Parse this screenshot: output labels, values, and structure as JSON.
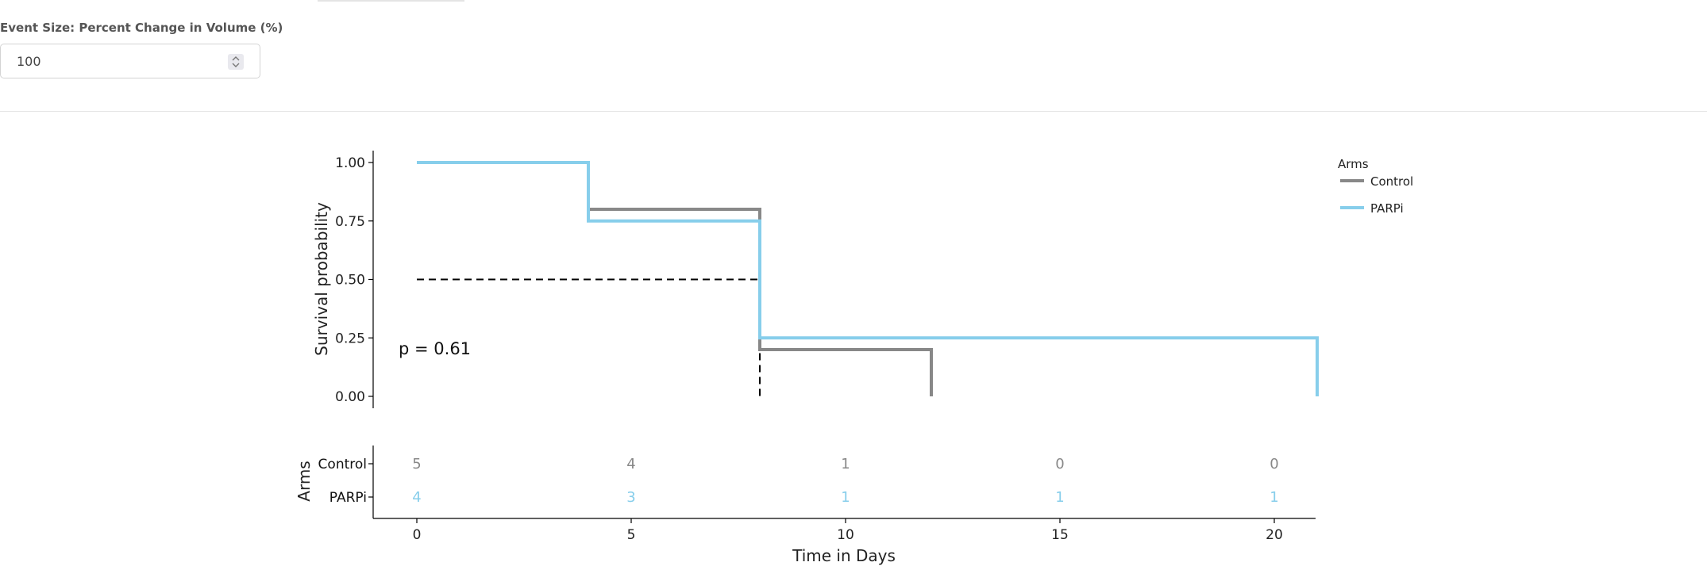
{
  "controls": {
    "event_size_label": "Event Size: Percent Change in Volume (%)",
    "event_size_value": "100"
  },
  "chart_data": {
    "type": "line",
    "subtype": "kaplan-meier-step",
    "xlabel": "Time in Days",
    "ylabel": "Survival probability",
    "xlim": [
      -1,
      21
    ],
    "ylim": [
      0,
      1
    ],
    "x_ticks": [
      0,
      5,
      10,
      15,
      20
    ],
    "y_ticks": [
      0.0,
      0.25,
      0.5,
      0.75,
      1.0
    ],
    "y_tick_labels": [
      "0.00",
      "0.25",
      "0.50",
      "0.75",
      "1.00"
    ],
    "legend_title": "Arms",
    "legend_position": "top-right",
    "annotation": "p = 0.61",
    "series": [
      {
        "name": "Control",
        "color": "#888888",
        "steps": [
          [
            0,
            1.0
          ],
          [
            4,
            1.0
          ],
          [
            4,
            0.8
          ],
          [
            8,
            0.8
          ],
          [
            8,
            0.2
          ],
          [
            12,
            0.2
          ],
          [
            12,
            0.0
          ]
        ]
      },
      {
        "name": "PARPi",
        "color": "#87CEEB",
        "steps": [
          [
            0,
            1.0
          ],
          [
            4,
            1.0
          ],
          [
            4,
            0.75
          ],
          [
            8,
            0.75
          ],
          [
            8,
            0.25
          ],
          [
            21,
            0.25
          ],
          [
            21,
            0.0
          ]
        ]
      }
    ],
    "median_line": {
      "y": 0.5,
      "x": 8
    },
    "risk_table": {
      "ylabel": "Arms",
      "times": [
        0,
        5,
        10,
        15,
        20
      ],
      "rows": [
        {
          "name": "Control",
          "color": "#888888",
          "counts": [
            5,
            4,
            1,
            0,
            0
          ]
        },
        {
          "name": "PARPi",
          "color": "#87CEEB",
          "counts": [
            4,
            3,
            1,
            1,
            1
          ]
        }
      ]
    }
  }
}
